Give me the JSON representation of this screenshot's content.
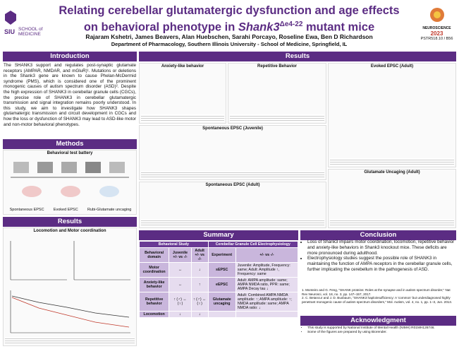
{
  "header": {
    "title_line1": "Relating cerebellar glutamatergic dysfunction and age effects",
    "title_line2_prefix": "on behavioral phenotype in ",
    "title_gene": "Shank3",
    "title_sup": "Δe4-22",
    "title_suffix": " mutant mice",
    "authors": "Rajaram Kshetri, James Beavers, Alan Huebschen, Sarahi Porcayo, Roseline Ewa, Ben D Richardson",
    "affiliation": "Department of Pharmacology, Southern Illinois University - School of Medicine, Springfield, IL",
    "logo_left_1": "SIU",
    "logo_left_2": "SCHOOL of",
    "logo_left_3": "MEDICINE",
    "logo_right": "NEUROSCIENCE",
    "logo_year": "2023",
    "poster_id": "PSTR518.10 / B56"
  },
  "introduction": {
    "heading": "Introduction",
    "text": "The SHANK3 support and regulates post-synaptic glutamate receptors (AMPAR, NMDAR, and mGluR)¹. Mutations or deletions in the Shank3 gene are known to cause Phelan-McDermid syndrome (PMS), which is considered one of the prominent monogenic causes of autism spectrum disorder (ASD)². Despite the high expression of SHANK3 in cerebellar granule cells (CGCs), the precise role of SHANK3 in cerebellar glutamatergic transmission and signal integration remains poorly understood. In this study, we aim to investigate how SHANK3 shapes glutamatergic transmission and circuit development in CGCs and how the loss or dysfunction of SHANK3 may lead to ASD-like motor and non-motor behavioral phenotypes."
  },
  "methods": {
    "heading": "Methods",
    "figure_title": "Behavioral test battery",
    "labels": [
      "Spontaneous EPSC",
      "Evoked EPSC",
      "Rubi-Glutamate uncaging"
    ]
  },
  "results_left": {
    "heading": "Results",
    "figure_title": "Locomotion and Motor coordination"
  },
  "results": {
    "heading": "Results",
    "panels": [
      "Anxiety-like behavior",
      "Repetitive Behavior",
      "Evoked EPSC (Adult)",
      "Spontaneous EPSC (Juvenile)",
      "Spontaneous EPSC (Adult)",
      "Glutamate Uncaging (Adult)"
    ]
  },
  "summary": {
    "heading": "Summary",
    "group_headers": [
      "Behavioral Study",
      "Cerebellar Granule Cell Electrophysiology"
    ],
    "col_headers": [
      "Behavioral domain",
      "Juvenile +/- vs -/-",
      "Adult +/- vs -/-",
      "Experiment",
      "+/- vs -/-"
    ],
    "rows": [
      [
        "Motor coordination",
        "↔",
        "↓",
        "sEPSC",
        "Juvenile: Amplitude, Frequency: same; Adult: Amplitude ↑, Frequency: same"
      ],
      [
        "Anxiety-like behavior",
        "↔",
        "↑",
        "eEPSC",
        "Adult: AMPA amplitude: same; AMPA NMDA ratio, PPR: same; AMPA Decay tau ↓"
      ],
      [
        "Repetitive behavior",
        "↑ (♂) ↔ (♀)",
        "↑ (♂) ↔ (♀)",
        "Glutamate uncaging",
        "Adult: Combined AMPA NMDA amplitude: ↑; AMPA amplitude: ↑; NMDA amplitude: same; AMPA NMDA ratio: ↓"
      ],
      [
        "Locomotion",
        "↓",
        "↓",
        "",
        ""
      ]
    ]
  },
  "conclusion": {
    "heading": "Conclusion",
    "bullets": [
      "Loss of Shank3 impairs motor coordination, locomotion, repetitive behavior and anxiety-like behaviors in Shank3 knockout mice. These deficits are more pronounced during adulthood.",
      "Electrophysiology studies suggest the possible role of SHANK3 in maintaining the function of AMPA receptors in the cerebellar granule cells, further implicating the cerebellum in the pathogenesis of ASD."
    ],
    "references": [
      "1. Monteiro and G. Feng, \"SHANK proteins: Roles at the synapse and in autism spectrum disorder,\" Nat Rev Neurosci, vol. 18, no. 3, pp. 147–157, 2017.",
      "2. C. Betancur and J. D. Buxbaum, \"SHANK3 haploinsufficiency: A 'common' but underdiagnosed highly penetrant monogenic cause of autism spectrum disorders,\" Mol. Autism, vol. 4, no. 1, pp. 1–3, Jun. 2013."
    ]
  },
  "acknowledgment": {
    "heading": "Acknowledgment",
    "items": [
      "This study is supported by National Institute of Mental Health (NIMH) R01MH126746.",
      "Some of the figures are prepared by using Biorender."
    ]
  }
}
